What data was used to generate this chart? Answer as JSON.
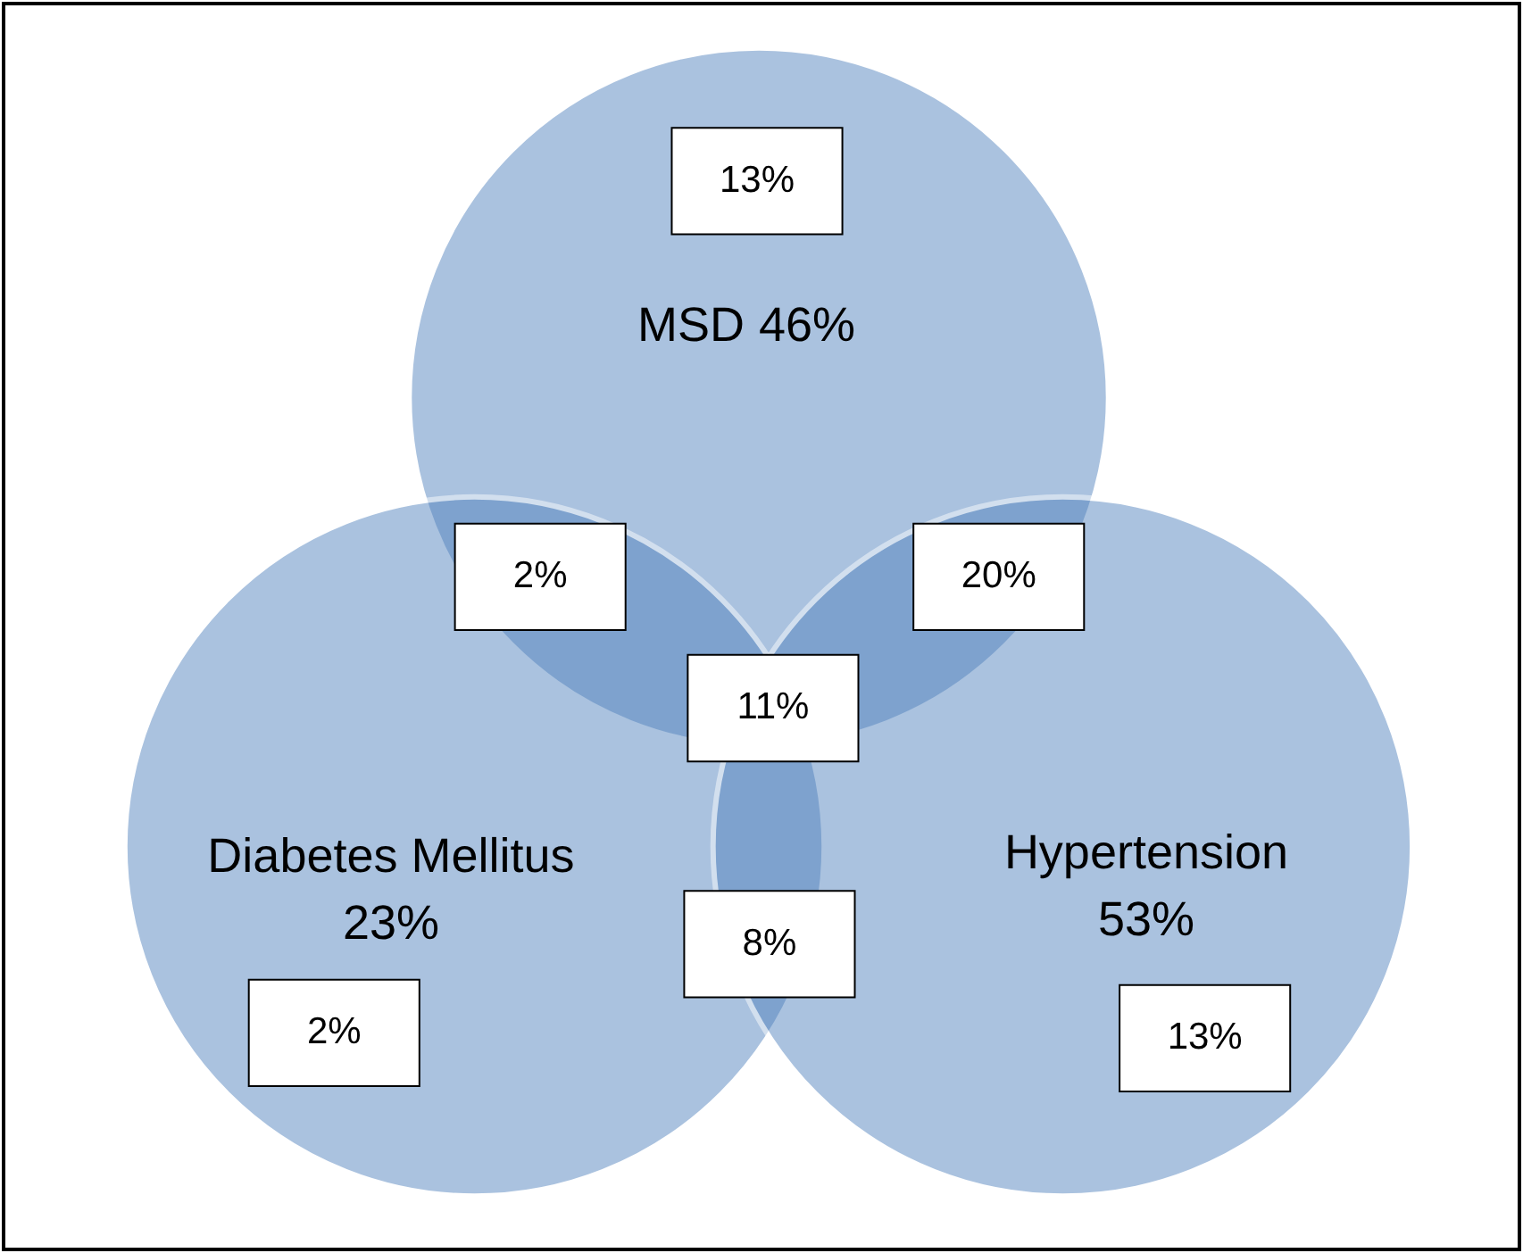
{
  "chart_data": {
    "type": "other",
    "categories": [
      "MSD",
      "Diabetes Mellitus",
      "Hypertension"
    ],
    "values": [
      46,
      23,
      53
    ],
    "value_labels": [
      "46%",
      "23%",
      "53%"
    ],
    "color": "#4f81bd",
    "annotations": [
      "13%",
      "2%",
      "20%",
      "11%",
      "8%",
      "2%",
      "13%"
    ]
  }
}
